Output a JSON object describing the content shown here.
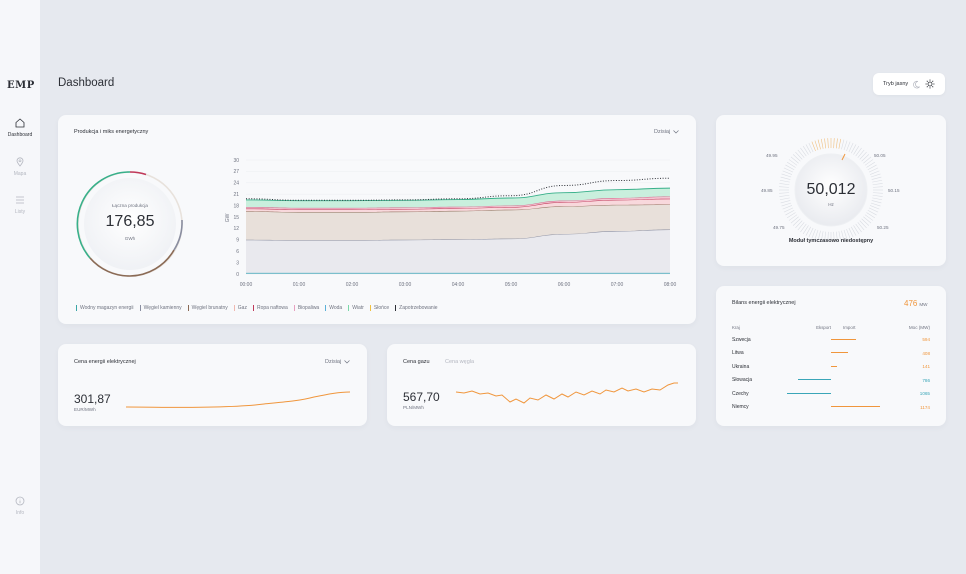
{
  "app": {
    "logo": "EMP",
    "page_title": "Dashboard",
    "theme_toggle_label": "Tryb jasny"
  },
  "sidebar": {
    "items": [
      {
        "label": "Dashboard",
        "icon": "home-icon",
        "active": true
      },
      {
        "label": "Mapa",
        "icon": "map-pin-icon",
        "active": false
      },
      {
        "label": "Listy",
        "icon": "list-icon",
        "active": false
      },
      {
        "label": "Info",
        "icon": "info-icon",
        "active": false
      }
    ]
  },
  "production": {
    "title": "Produkcja i miks energetyczny",
    "period": "Dzisiaj",
    "total_label": "Łączna produkcja",
    "total_value": "176,85",
    "total_unit": "GWh",
    "ylabel": "GW",
    "legend": [
      {
        "label": "Wodny magazyn energii",
        "color": "#3aa6a6"
      },
      {
        "label": "Węgiel kamienny",
        "color": "#8a8ea0"
      },
      {
        "label": "Węgiel brunatny",
        "color": "#8a6a55"
      },
      {
        "label": "Gaz",
        "color": "#f0b8b0"
      },
      {
        "label": "Ropa naftowa",
        "color": "#c0395a"
      },
      {
        "label": "Biopaliwa",
        "color": "#e8a0c0"
      },
      {
        "label": "Woda",
        "color": "#5ab0d8"
      },
      {
        "label": "Wiatr",
        "color": "#7ad8a8"
      },
      {
        "label": "Słońce",
        "color": "#f0c040"
      },
      {
        "label": "Zapotrzebowanie",
        "color": "#2c2f36"
      }
    ]
  },
  "chart_data": {
    "type": "area",
    "ylabel": "GW",
    "ylim": [
      0,
      30
    ],
    "yticks": [
      0,
      3,
      6,
      9,
      12,
      15,
      18,
      21,
      24,
      27,
      30
    ],
    "x": [
      "00:00",
      "01:00",
      "02:00",
      "03:00",
      "04:00",
      "05:00",
      "06:00",
      "07:00",
      "08:00"
    ],
    "stacked_totals": [
      {
        "name": "Węgiel kamienny",
        "values": [
          9,
          8.9,
          8.9,
          9,
          9.1,
          9.3,
          10.5,
          11.3,
          11.7
        ]
      },
      {
        "name": "Węgiel brunatny",
        "values": [
          16.5,
          16.3,
          16.3,
          16.4,
          16.6,
          16.9,
          17.8,
          18.2,
          18.3
        ]
      },
      {
        "name": "Ropa naftowa",
        "values": [
          17.2,
          17,
          17,
          17.1,
          17.3,
          17.6,
          18.9,
          19.5,
          19.8
        ]
      },
      {
        "name": "Biopaliwa",
        "values": [
          17.6,
          17.4,
          17.4,
          17.5,
          17.7,
          18,
          19.3,
          20,
          20.4
        ]
      },
      {
        "name": "Wiatr",
        "values": [
          19.5,
          19.3,
          19.3,
          19.4,
          19.6,
          20.0,
          21.4,
          22.2,
          22.6
        ]
      },
      {
        "name": "Zapotrzebowanie",
        "values": [
          19.8,
          19.4,
          19.4,
          19.5,
          19.8,
          20.6,
          23.3,
          24.6,
          25.2
        ]
      }
    ]
  },
  "frequency": {
    "value": "50,012",
    "unit": "Hz",
    "status": "Moduł tymczasowo niedostępny",
    "scale": [
      "49.95",
      "50.05",
      "49.85",
      "50.15",
      "49.75",
      "50.25"
    ]
  },
  "electricity_price": {
    "title": "Cena energii elektrycznej",
    "period": "Dzisiaj",
    "value": "301,87",
    "unit": "EUR/MWh"
  },
  "gas_price": {
    "tab_active": "Cena gazu",
    "tab_inactive": "Cena węgla",
    "value": "567,70",
    "unit": "PLN/MWh"
  },
  "balance": {
    "title": "Bilans energii elektrycznej",
    "total_value": "476",
    "total_unit": "MW",
    "headers": {
      "country": "Kraj",
      "export": "Eksport",
      "import": "Import",
      "power": "Moc (MW)"
    },
    "rows": [
      {
        "country": "Szwecja",
        "power": "594",
        "direction": "import",
        "magnitude": 594
      },
      {
        "country": "Litwa",
        "power": "408",
        "direction": "import",
        "magnitude": 408
      },
      {
        "country": "Ukraina",
        "power": "141",
        "direction": "import",
        "magnitude": 141
      },
      {
        "country": "Słowacja",
        "power": "786",
        "direction": "export",
        "magnitude": 786
      },
      {
        "country": "Czechy",
        "power": "1065",
        "direction": "export",
        "magnitude": 1065
      },
      {
        "country": "Niemcy",
        "power": "1174",
        "direction": "import",
        "magnitude": 1174
      }
    ],
    "colors": {
      "import": "#f0963c",
      "export": "#3aa6b8"
    }
  }
}
